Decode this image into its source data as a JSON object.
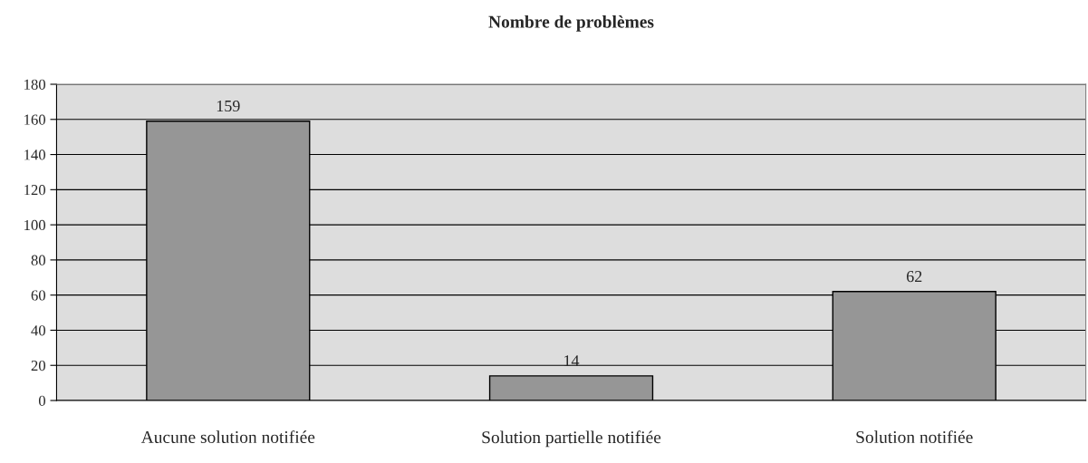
{
  "chart_data": {
    "type": "bar",
    "title": "Nombre de problèmes",
    "categories": [
      "Aucune solution notifiée",
      "Solution partielle notifiée",
      "Solution notifiée"
    ],
    "values": [
      159,
      14,
      62
    ],
    "color": "#969696",
    "ylim": [
      0,
      180
    ],
    "yticks": [
      0,
      20,
      40,
      60,
      80,
      100,
      120,
      140,
      160,
      180
    ],
    "grid": "y",
    "data_labels": true
  }
}
